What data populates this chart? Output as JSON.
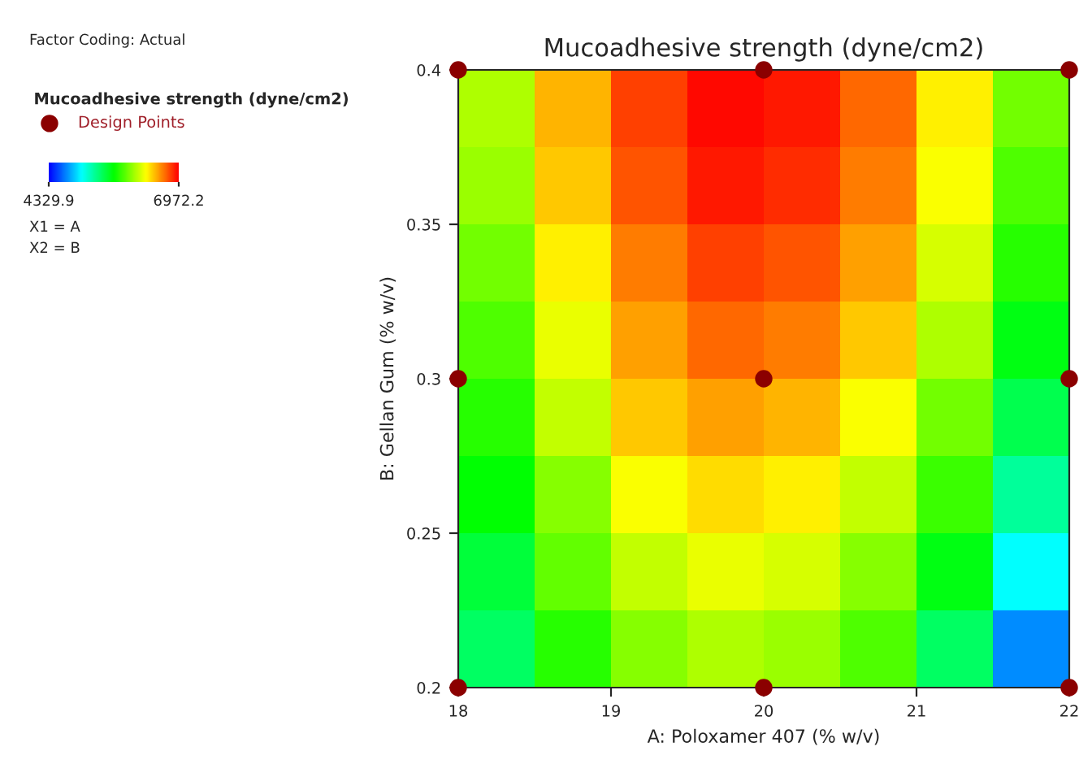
{
  "chart_data": {
    "type": "heatmap",
    "title": "Mucoadhesive strength (dyne/cm2)",
    "xlabel": "A: Poloxamer 407 (% w/v)",
    "ylabel": "B: Gellan Gum (% w/v)",
    "legend_title": "Mucoadhesive strength (dyne/cm2)",
    "annotations": [
      "Factor Coding: Actual",
      "X1 = A",
      "X2 = B"
    ],
    "xlim": [
      18,
      22
    ],
    "xticks": [
      18,
      19,
      20,
      21,
      22
    ],
    "ylim": [
      0.2,
      0.4
    ],
    "yticks": [
      0.2,
      0.25,
      0.3,
      0.35,
      0.4
    ],
    "colors": [
      "#0000ff",
      "#00ffff",
      "#00ff00",
      "#ffff00",
      "#ff0000"
    ],
    "clim": [
      4329.9,
      6972.2
    ],
    "cticks": [
      4329.9,
      6972.2
    ],
    "cells": [
      [
        6100,
        6500,
        6800,
        6950,
        6900,
        6700,
        6350,
        5950
      ],
      [
        6050,
        6450,
        6750,
        6900,
        6850,
        6650,
        6300,
        5850
      ],
      [
        5950,
        6350,
        6650,
        6800,
        6750,
        6550,
        6200,
        5750
      ],
      [
        5850,
        6250,
        6550,
        6700,
        6650,
        6450,
        6100,
        5600
      ],
      [
        5750,
        6150,
        6450,
        6550,
        6500,
        6300,
        5950,
        5450
      ],
      [
        5650,
        6000,
        6300,
        6400,
        6350,
        6150,
        5800,
        5250
      ],
      [
        5500,
        5900,
        6150,
        6250,
        6200,
        6000,
        5600,
        5000
      ],
      [
        5400,
        5750,
        6000,
        6100,
        6050,
        5850,
        5400,
        4700
      ]
    ],
    "series": [
      {
        "type": "scatter",
        "name": "Design Points",
        "color": "#8b0000",
        "x": [
          18,
          18,
          18,
          20,
          20,
          20,
          22,
          22,
          22
        ],
        "values": [
          0.2,
          0.3,
          0.4,
          0.2,
          0.3,
          0.4,
          0.2,
          0.3,
          0.4
        ]
      }
    ],
    "legend": "left",
    "marker": "circle"
  }
}
